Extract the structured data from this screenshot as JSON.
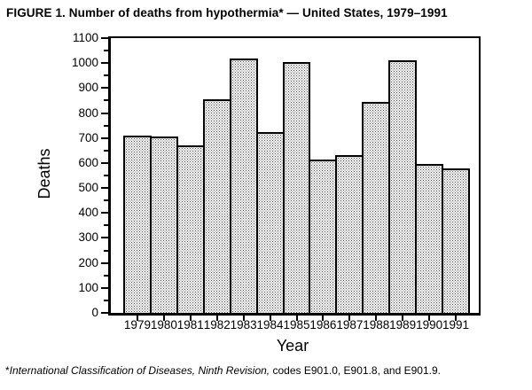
{
  "figure": {
    "title": "FIGURE 1. Number of deaths from hypothermia* — United States, 1979–1991",
    "footnote_marker": "*",
    "footnote_italic": "International Classification of Diseases, Ninth Revision,",
    "footnote_regular": " codes E901.0, E901.8, and E901.9."
  },
  "chart_data": {
    "type": "bar",
    "title": "FIGURE 1. Number of deaths from hypothermia* — United States, 1979–1991",
    "categories": [
      "1979",
      "1980",
      "1981",
      "1982",
      "1983",
      "1984",
      "1985",
      "1986",
      "1987",
      "1988",
      "1989",
      "1990",
      "1991"
    ],
    "values": [
      710,
      705,
      670,
      855,
      1020,
      725,
      1005,
      615,
      630,
      845,
      1010,
      595,
      580
    ],
    "xlabel": "Year",
    "ylabel": "Deaths",
    "ylim": [
      0,
      1100
    ],
    "yticks": [
      0,
      100,
      200,
      300,
      400,
      500,
      600,
      700,
      800,
      900,
      1000,
      1100
    ],
    "ytick_step": 100,
    "yminor_step": 50,
    "grid": false,
    "legend": false,
    "bar_fill": "stipple-dot-pattern",
    "bar_border_color": "#000000",
    "axis_color": "#000000",
    "background_color": "#ffffff"
  }
}
